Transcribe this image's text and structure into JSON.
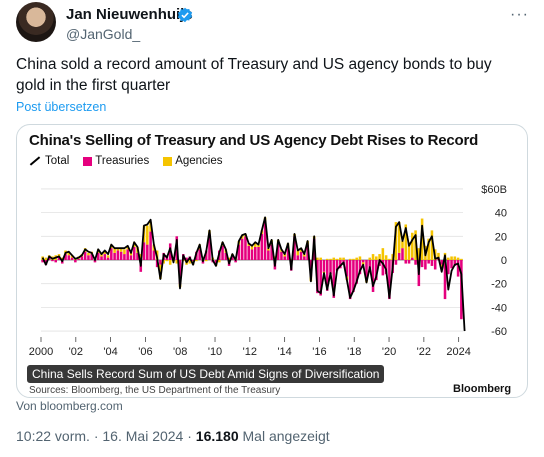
{
  "author": {
    "name": "Jan Nieuwenhuijs",
    "handle": "@JanGold_"
  },
  "tweet": {
    "text": "China sold a record amount of Treasury and US agency bonds to buy gold in the first quarter",
    "translate": "Post übersetzen"
  },
  "card": {
    "caption": "China Sells Record Sum of US Debt Amid Signs of Diversification",
    "source": "Sources: Bloomberg, the US Department of the Treasury",
    "brand": "Bloomberg",
    "domain": "Von bloomberg.com"
  },
  "meta": {
    "time": "10:22 vorm.",
    "date": "16. Mai 2024",
    "views": "16.180",
    "views_label": "Mal angezeigt"
  },
  "colors": {
    "treasuries": "#e5007e",
    "agencies": "#f5c400",
    "total": "#000000",
    "link": "#1d9bf0"
  },
  "chart_data": {
    "type": "bar",
    "title": "China's Selling of Treasury and US Agency Debt Rises to Record",
    "legend": [
      "Total",
      "Treasuries",
      "Agencies"
    ],
    "y_unit_label": "$60B",
    "ylim": [
      -65,
      65
    ],
    "y_ticks": [
      60,
      40,
      20,
      0,
      -20,
      -40,
      -60
    ],
    "x_ticks": [
      "2000",
      "'02",
      "'04",
      "'06",
      "'08",
      "'10",
      "'12",
      "'14",
      "'16",
      "'18",
      "'20",
      "'22",
      "2024"
    ],
    "x_range": [
      2000,
      2024.25
    ],
    "series": [
      {
        "name": "Treasuries",
        "values": [
          -2,
          -4,
          3,
          -1,
          -2,
          3,
          -3,
          5,
          4,
          2,
          -2,
          1,
          3,
          7,
          4,
          5,
          -2,
          6,
          3,
          5,
          2,
          10,
          6,
          8,
          7,
          5,
          9,
          4,
          11,
          6,
          -10,
          15,
          13,
          24,
          8,
          -6,
          -4,
          6,
          4,
          14,
          0,
          20,
          -20,
          5,
          2,
          3,
          -1,
          7,
          9,
          -3,
          8,
          22,
          -2,
          -4,
          8,
          12,
          6,
          -5,
          3,
          -2,
          13,
          18,
          20,
          12,
          9,
          11,
          11,
          22,
          33,
          8,
          13,
          -8,
          14,
          7,
          3,
          10,
          -9,
          20,
          4,
          7,
          3,
          13,
          -14,
          18,
          -28,
          -30,
          -10,
          -26,
          -12,
          -32,
          -9,
          -7,
          -4,
          -14,
          -33,
          -27,
          -20,
          -12,
          -2,
          -16,
          -8,
          -27,
          -17,
          -5,
          -13,
          -12,
          -33,
          -11,
          -4,
          6,
          10,
          -3,
          -3,
          2,
          -4,
          -22,
          -6,
          -8,
          -3,
          -5,
          -8,
          2,
          -4,
          -33,
          -12,
          -7,
          -5,
          -14,
          -50
        ]
      },
      {
        "name": "Agencies",
        "values": [
          3,
          2,
          1,
          3,
          4,
          2,
          2,
          3,
          3,
          2,
          1,
          2,
          2,
          3,
          2,
          2,
          2,
          3,
          2,
          3,
          2,
          3,
          4,
          2,
          3,
          4,
          2,
          3,
          4,
          5,
          5,
          14,
          16,
          8,
          5,
          8,
          -12,
          -3,
          -1,
          -4,
          -1,
          -3,
          -3,
          -1,
          -4,
          -3,
          -3,
          -1,
          4,
          2,
          -1,
          3,
          2,
          -1,
          -2,
          3,
          3,
          2,
          2,
          2,
          3,
          3,
          2,
          2,
          3,
          4,
          2,
          3,
          3,
          2,
          4,
          3,
          3,
          2,
          2,
          4,
          1,
          2,
          4,
          3,
          2,
          3,
          -4,
          2,
          2,
          2,
          -1,
          1,
          1,
          2,
          1,
          2,
          2,
          -3,
          1,
          1,
          2,
          3,
          -2,
          -3,
          2,
          5,
          3,
          5,
          10,
          4,
          1,
          5,
          32,
          26,
          6,
          30,
          15,
          21,
          25,
          10,
          35,
          12,
          18,
          25,
          9,
          4,
          -2,
          6,
          2,
          3,
          3,
          2,
          1,
          2
        ]
      },
      {
        "name": "Total",
        "values": [
          2,
          -4,
          3,
          1,
          2,
          3,
          -1,
          6,
          7,
          4,
          1,
          2,
          4,
          9,
          7,
          6,
          0,
          9,
          5,
          8,
          5,
          13,
          10,
          10,
          10,
          10,
          12,
          6,
          15,
          11,
          -5,
          29,
          30,
          34,
          13,
          2,
          -16,
          5,
          2,
          10,
          -2,
          17,
          -24,
          4,
          -2,
          2,
          -4,
          6,
          13,
          -1,
          7,
          25,
          0,
          -5,
          6,
          15,
          9,
          -3,
          5,
          0,
          16,
          21,
          22,
          14,
          12,
          15,
          13,
          25,
          36,
          10,
          17,
          -5,
          17,
          9,
          5,
          14,
          -8,
          22,
          8,
          10,
          5,
          16,
          -18,
          20,
          -26,
          -28,
          -11,
          -25,
          -11,
          -30,
          -8,
          -5,
          -2,
          -17,
          -32,
          -26,
          -18,
          -9,
          -4,
          -19,
          -6,
          -22,
          -14,
          0,
          -3,
          -8,
          -32,
          -6,
          28,
          32,
          16,
          27,
          12,
          17,
          21,
          -12,
          29,
          4,
          15,
          20,
          1,
          2,
          -10,
          4,
          -25,
          -9,
          -4,
          -3,
          -12,
          -60
        ]
      }
    ]
  }
}
